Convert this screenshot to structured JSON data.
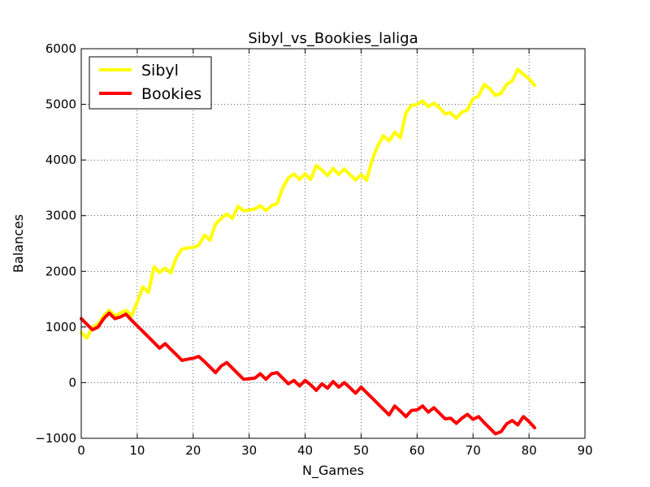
{
  "chart_data": {
    "type": "line",
    "title": "Sibyl_vs_Bookies_laliga",
    "xlabel": "N_Games",
    "ylabel": "Balances",
    "xlim": [
      0,
      90
    ],
    "ylim": [
      -1000,
      6000
    ],
    "xticks": [
      0,
      10,
      20,
      30,
      40,
      50,
      60,
      70,
      80,
      90
    ],
    "yticks": [
      -1000,
      0,
      1000,
      2000,
      3000,
      4000,
      5000,
      6000
    ],
    "grid": true,
    "legend_position": "top-left",
    "series": [
      {
        "name": "Sibyl",
        "color": "#ffff00",
        "x": [
          0,
          1,
          2,
          3,
          4,
          5,
          6,
          7,
          8,
          9,
          10,
          11,
          12,
          13,
          14,
          15,
          16,
          17,
          18,
          19,
          20,
          21,
          22,
          23,
          24,
          25,
          26,
          27,
          28,
          29,
          30,
          31,
          32,
          33,
          34,
          35,
          36,
          37,
          38,
          39,
          40,
          41,
          42,
          43,
          44,
          45,
          46,
          47,
          48,
          49,
          50,
          51,
          52,
          53,
          54,
          55,
          56,
          57,
          58,
          59,
          60,
          61,
          62,
          63,
          64,
          65,
          66,
          67,
          68,
          69,
          70,
          71,
          72,
          73,
          74,
          75,
          76,
          77,
          78,
          79,
          80,
          81
        ],
        "values": [
          900,
          800,
          1000,
          1050,
          1200,
          1300,
          1200,
          1250,
          1300,
          1200,
          1450,
          1720,
          1620,
          2080,
          1980,
          2060,
          1970,
          2250,
          2400,
          2420,
          2430,
          2470,
          2650,
          2560,
          2850,
          2950,
          3030,
          2950,
          3170,
          3090,
          3100,
          3120,
          3180,
          3090,
          3180,
          3220,
          3500,
          3680,
          3750,
          3650,
          3750,
          3650,
          3900,
          3820,
          3720,
          3850,
          3740,
          3840,
          3740,
          3640,
          3740,
          3640,
          4010,
          4260,
          4440,
          4340,
          4500,
          4400,
          4850,
          4980,
          5000,
          5060,
          4960,
          5020,
          4940,
          4830,
          4850,
          4750,
          4860,
          4900,
          5100,
          5150,
          5360,
          5280,
          5160,
          5200,
          5360,
          5420,
          5630,
          5540,
          5460,
          5340
        ]
      },
      {
        "name": "Bookies",
        "color": "#ff0000",
        "x": [
          0,
          1,
          2,
          3,
          4,
          5,
          6,
          7,
          8,
          9,
          10,
          11,
          12,
          13,
          14,
          15,
          16,
          17,
          18,
          19,
          20,
          21,
          22,
          23,
          24,
          25,
          26,
          27,
          28,
          29,
          30,
          31,
          32,
          33,
          34,
          35,
          36,
          37,
          38,
          39,
          40,
          41,
          42,
          43,
          44,
          45,
          46,
          47,
          48,
          49,
          50,
          51,
          52,
          53,
          54,
          55,
          56,
          57,
          58,
          59,
          60,
          61,
          62,
          63,
          64,
          65,
          66,
          67,
          68,
          69,
          70,
          71,
          72,
          73,
          74,
          75,
          76,
          77,
          78,
          79,
          80,
          81
        ],
        "values": [
          1150,
          1050,
          950,
          1000,
          1150,
          1250,
          1150,
          1180,
          1230,
          1120,
          1020,
          920,
          820,
          720,
          620,
          700,
          600,
          500,
          400,
          420,
          440,
          470,
          380,
          280,
          180,
          300,
          360,
          260,
          160,
          60,
          70,
          80,
          160,
          60,
          160,
          180,
          80,
          -20,
          40,
          -60,
          40,
          -40,
          -140,
          -20,
          -100,
          20,
          -80,
          0,
          -90,
          -190,
          -80,
          -180,
          -280,
          -380,
          -480,
          -580,
          -420,
          -510,
          -610,
          -500,
          -490,
          -420,
          -530,
          -450,
          -550,
          -650,
          -640,
          -730,
          -640,
          -570,
          -660,
          -610,
          -720,
          -820,
          -920,
          -880,
          -740,
          -680,
          -760,
          -610,
          -700,
          -810
        ]
      }
    ]
  }
}
